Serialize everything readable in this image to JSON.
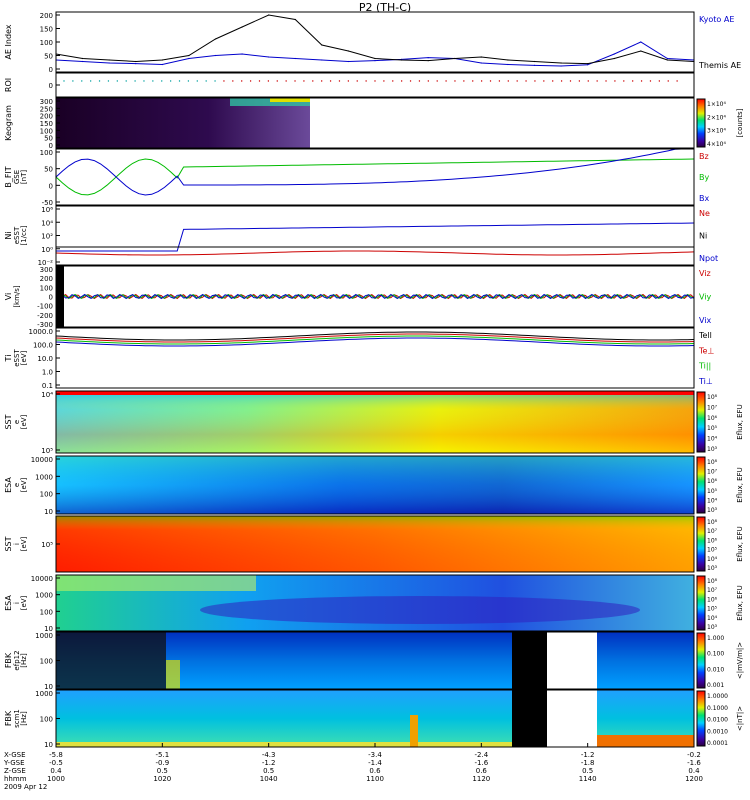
{
  "title": "P2 (TH-C)",
  "chart_data": [
    {
      "panel": "ae",
      "type": "line",
      "ylabel": "AE Index",
      "ylim": [
        0,
        200
      ],
      "yticks": [
        "0",
        "50",
        "100",
        "150",
        "200"
      ],
      "series": [
        {
          "name": "Kyoto AE",
          "color": "#0000cc",
          "x": [
            0,
            5,
            10,
            15,
            20,
            25,
            30,
            35,
            40,
            45,
            50,
            55,
            60,
            65,
            70,
            75,
            80,
            85,
            90,
            95,
            100,
            105,
            110,
            115,
            120
          ],
          "values": [
            40,
            35,
            30,
            28,
            25,
            45,
            55,
            60,
            50,
            45,
            40,
            35,
            38,
            42,
            48,
            45,
            30,
            25,
            22,
            20,
            24,
            60,
            100,
            45,
            40
          ]
        },
        {
          "name": "Themis AE",
          "color": "#000000",
          "x": [
            0,
            5,
            10,
            15,
            20,
            25,
            30,
            35,
            40,
            45,
            50,
            55,
            60,
            65,
            70,
            75,
            80,
            85,
            90,
            95,
            100,
            105,
            110,
            115,
            120
          ],
          "values": [
            60,
            45,
            40,
            35,
            40,
            55,
            110,
            150,
            190,
            175,
            90,
            70,
            45,
            40,
            38,
            45,
            50,
            40,
            35,
            30,
            28,
            45,
            70,
            40,
            35
          ]
        }
      ]
    },
    {
      "panel": "roi",
      "type": "scatter",
      "ylabel": "ROI",
      "yticks": [
        "0"
      ]
    },
    {
      "panel": "keogram",
      "type": "heatmap",
      "ylabel": "Keogram",
      "yticks": [
        "0",
        "50",
        "100",
        "150",
        "200",
        "250",
        "300"
      ],
      "colorbar": {
        "label": "[counts]",
        "ticks": [
          "1×10⁴",
          "2×10⁴",
          "3×10⁴",
          "4×10⁴"
        ]
      }
    },
    {
      "panel": "bfit",
      "type": "line",
      "ylabel": "B_FIT",
      "units": [
        "GSE",
        "[nT]"
      ],
      "yticks": [
        "-50",
        "0",
        "50",
        "100"
      ],
      "series": [
        {
          "name": "Bz",
          "color": "#cc0000"
        },
        {
          "name": "By",
          "color": "#00bb00"
        },
        {
          "name": "Bx",
          "color": "#0000cc"
        }
      ]
    },
    {
      "panel": "ni",
      "type": "line",
      "ylabel": "Ni",
      "units": [
        "eSST",
        "[1/cc]"
      ],
      "yticks": [
        "10⁻²",
        "10⁰",
        "10²",
        "10⁴",
        "10⁶"
      ],
      "series": [
        {
          "name": "Ne",
          "color": "#cc0000"
        },
        {
          "name": "Ni",
          "color": "#000000"
        },
        {
          "name": "Npot",
          "color": "#0000cc"
        }
      ]
    },
    {
      "panel": "vi",
      "type": "line",
      "ylabel": "Vi",
      "units": [
        "[km/s]"
      ],
      "yticks": [
        "-300",
        "-200",
        "-100",
        "0",
        "100",
        "200",
        "300"
      ],
      "series": [
        {
          "name": "Viz",
          "color": "#cc0000"
        },
        {
          "name": "Viy",
          "color": "#00bb00"
        },
        {
          "name": "Vix",
          "color": "#0000cc"
        }
      ]
    },
    {
      "panel": "ti",
      "type": "line",
      "ylabel": "Ti",
      "units": [
        "eSST",
        "[eV]"
      ],
      "yticks": [
        "0.1",
        "1.0",
        "10.0",
        "100.0",
        "1000.0"
      ],
      "series": [
        {
          "name": "Tell",
          "color": "#000000"
        },
        {
          "name": "Te⊥",
          "color": "#cc0000"
        },
        {
          "name": "Ti||",
          "color": "#00bb00"
        },
        {
          "name": "Ti⊥",
          "color": "#0000cc"
        }
      ]
    },
    {
      "panel": "sst_e",
      "type": "heatmap",
      "ylabel": "SST",
      "units": [
        "e",
        "[eV]"
      ],
      "yticks": [
        "10⁵",
        "10⁴"
      ],
      "colorbar": {
        "label": "Eflux, EFU",
        "ticks": [
          "10⁸",
          "10⁷",
          "10⁶",
          "10⁵",
          "10⁴",
          "10³"
        ]
      }
    },
    {
      "panel": "esa_e",
      "type": "heatmap",
      "ylabel": "ESA",
      "units": [
        "e",
        "[eV]"
      ],
      "yticks": [
        "10",
        "100",
        "1000",
        "10000"
      ],
      "colorbar": {
        "label": "Eflux, EFU",
        "ticks": [
          "10⁸",
          "10⁷",
          "10⁶",
          "10⁵",
          "10⁴",
          "10³"
        ]
      }
    },
    {
      "panel": "sst_i",
      "type": "heatmap",
      "ylabel": "SST",
      "units": [
        "i",
        "[eV]"
      ],
      "yticks": [
        "10⁵"
      ],
      "colorbar": {
        "label": "Eflux, EFU",
        "ticks": [
          "10⁸",
          "10⁷",
          "10⁶",
          "10⁵",
          "10⁴",
          "10³"
        ]
      }
    },
    {
      "panel": "esa_i",
      "type": "heatmap",
      "ylabel": "ESA",
      "units": [
        "i",
        "[eV]"
      ],
      "yticks": [
        "10",
        "100",
        "1000",
        "10000"
      ],
      "colorbar": {
        "label": "Eflux, EFU",
        "ticks": [
          "10⁸",
          "10⁷",
          "10⁶",
          "10⁵",
          "10⁴",
          "10³"
        ]
      }
    },
    {
      "panel": "fbk_e",
      "type": "heatmap",
      "ylabel": "FBK",
      "units": [
        "efp12",
        "[Hz]"
      ],
      "yticks": [
        "10",
        "100",
        "1000"
      ],
      "colorbar": {
        "label": "<|mV/m|>",
        "ticks": [
          "1.000",
          "0.100",
          "0.010",
          "0.001"
        ]
      }
    },
    {
      "panel": "fbk_b",
      "type": "heatmap",
      "ylabel": "FBK",
      "units": [
        "scm1",
        "[Hz]"
      ],
      "yticks": [
        "10",
        "100",
        "1000"
      ],
      "colorbar": {
        "label": "<|nT|>",
        "ticks": [
          "1.0000",
          "0.1000",
          "0.0100",
          "0.0010",
          "0.0001"
        ]
      }
    }
  ],
  "time_axis": {
    "row_labels": [
      "X-GSE",
      "Y-GSE",
      "Z-GSE",
      "hhmm",
      "2009 Apr 12"
    ],
    "ticks": [
      {
        "x": "-5.8",
        "y": "-0.5",
        "z": "0.4",
        "t": "1000"
      },
      {
        "x": "-5.1",
        "y": "-0.9",
        "z": "0.5",
        "t": "1020"
      },
      {
        "x": "-4.3",
        "y": "-1.2",
        "z": "0.5",
        "t": "1040"
      },
      {
        "x": "-3.4",
        "y": "-1.4",
        "z": "0.6",
        "t": "1100"
      },
      {
        "x": "-2.4",
        "y": "-1.6",
        "z": "0.6",
        "t": "1120"
      },
      {
        "x": "-1.2",
        "y": "-1.8",
        "z": "0.5",
        "t": "1140"
      },
      {
        "x": "-0.2",
        "y": "-1.6",
        "z": "0.4",
        "t": "1200"
      }
    ]
  }
}
